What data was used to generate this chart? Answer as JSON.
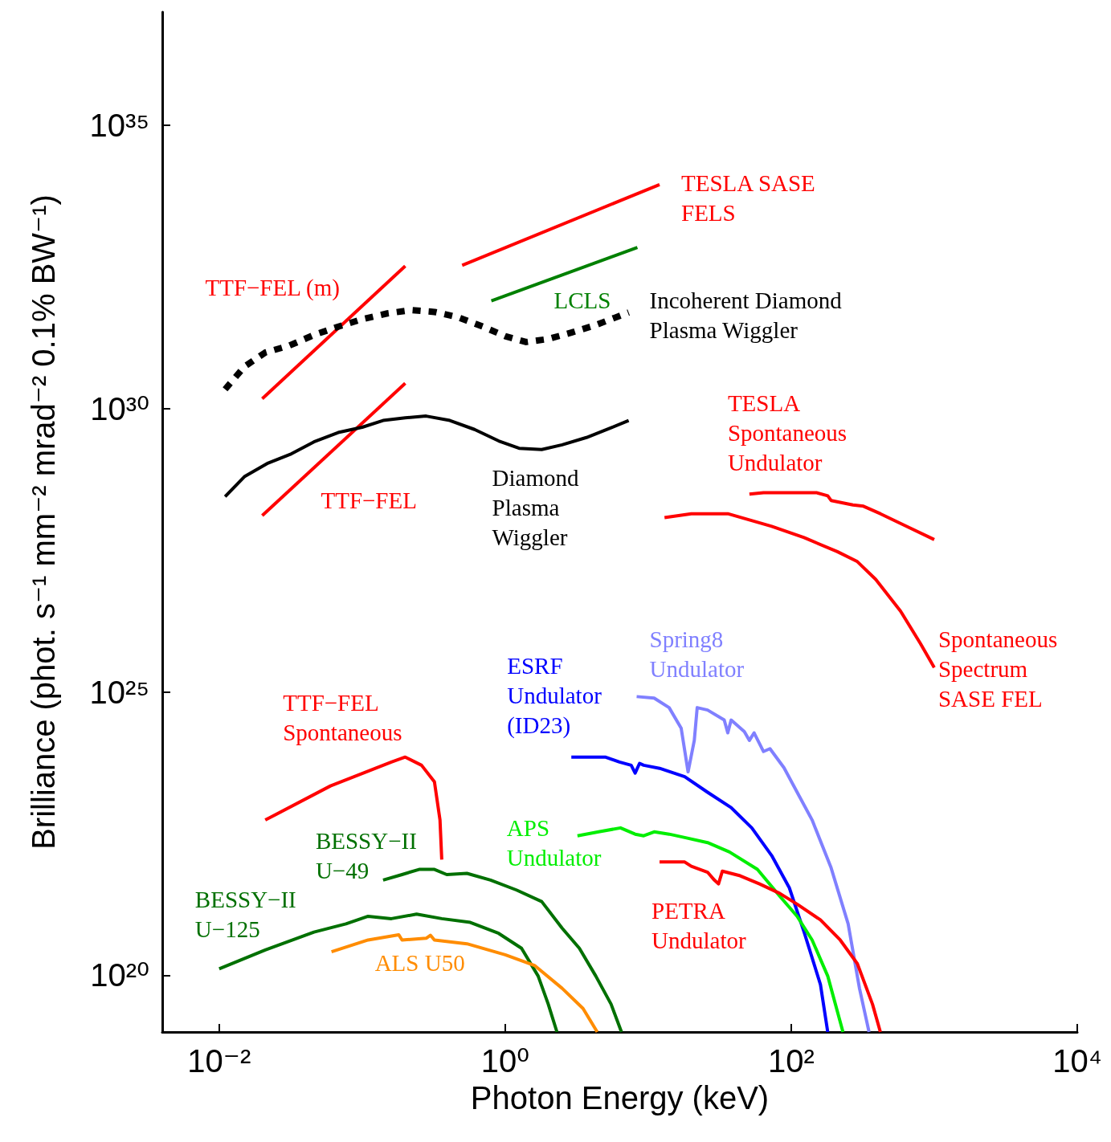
{
  "chart_data": {
    "type": "line",
    "xlabel": "Photon Energy (keV)",
    "ylabel": "Brilliance (phot. s⁻¹ mm⁻² mrad⁻² 0.1% BW⁻¹)",
    "log": "xy",
    "marker": "none",
    "grid": false,
    "xlim": [
      0.004,
      10000
    ],
    "ylim": [
      1e+19,
      1e+37
    ],
    "xticks": [
      {
        "value": 0.01,
        "label": "10⁻²"
      },
      {
        "value": 1,
        "label": "10⁰"
      },
      {
        "value": 100,
        "label": "10²"
      },
      {
        "value": 10000,
        "label": "10⁴"
      }
    ],
    "yticks": [
      {
        "value": 1e+20,
        "label": "10²⁰"
      },
      {
        "value": 1e+25,
        "label": "10²⁵"
      },
      {
        "value": 1e+30,
        "label": "10³⁰"
      },
      {
        "value": 1e+35,
        "label": "10³⁵"
      }
    ],
    "series": [
      {
        "name": "TESLA SASE\nFELS",
        "color": "#ff0000",
        "x": [
          0.5,
          12
        ],
        "values": [
          3.4e+32,
          9e+33
        ]
      },
      {
        "name": "LCLS",
        "color": "#008000",
        "x": [
          0.8,
          8.4
        ],
        "values": [
          8e+31,
          7e+32
        ]
      },
      {
        "name": "TTF−FEL (m)",
        "color": "#ff0000",
        "x": [
          0.02,
          0.2
        ],
        "values": [
          1.5e+30,
          3.3e+32
        ]
      },
      {
        "name": "TTF−FEL",
        "color": "#ff0000",
        "x": [
          0.02,
          0.2
        ],
        "values": [
          1.3e+28,
          2.8e+30
        ]
      },
      {
        "name": "Incoherent Diamond\nPlasma Wiggler",
        "color": "#000000",
        "line_style": "dotted",
        "x": [
          0.011,
          0.015,
          0.021,
          0.031,
          0.046,
          0.068,
          0.1,
          0.15,
          0.22,
          0.32,
          0.47,
          0.7,
          1.0,
          1.4,
          2.0,
          2.9,
          4.3,
          5.5,
          7.3
        ],
        "values": [
          2.2e+30,
          5.5e+30,
          9.8e+30,
          1.3e+31,
          2e+31,
          2.8e+31,
          3.8e+31,
          4.8e+31,
          5.5e+31,
          5.1e+31,
          4.1e+31,
          2.8e+31,
          1.9e+31,
          1.5e+31,
          1.7e+31,
          2.2e+31,
          3e+31,
          3.8e+31,
          5e+31
        ]
      },
      {
        "name": "Diamond\nPlasma\nWiggler",
        "color": "#000000",
        "x": [
          0.011,
          0.015,
          0.022,
          0.032,
          0.046,
          0.068,
          0.1,
          0.14,
          0.2,
          0.28,
          0.41,
          0.61,
          0.9,
          1.25,
          1.8,
          2.5,
          3.7,
          5.5,
          7.3
        ],
        "values": [
          2.8e+28,
          6.3e+28,
          1.1e+29,
          1.6e+29,
          2.6e+29,
          3.8e+29,
          4.7e+29,
          6.2e+29,
          6.9e+29,
          7.4e+29,
          6.2e+29,
          4.3e+29,
          2.7e+29,
          2e+29,
          1.9e+29,
          2.3e+29,
          3.1e+29,
          4.6e+29,
          6.2e+29
        ]
      },
      {
        "name": "TESLA\nSpontaneous\nUndulator",
        "color": "#ff0000",
        "x": [
          51,
          64,
          150,
          180,
          190,
          270,
          320,
          420,
          660,
          1000
        ],
        "values": [
          3.1e+28,
          3.3e+28,
          3.3e+28,
          2.9e+28,
          2.4e+28,
          2e+28,
          1.9e+28,
          1.4e+28,
          8.1e+27,
          4.9e+27
        ]
      },
      {
        "name": "Spontaneous\nSpectrum\nSASE FEL",
        "color": "#ff0000",
        "x": [
          13,
          20,
          36,
          73,
          123,
          210,
          290,
          390,
          580,
          800,
          1000
        ],
        "values": [
          1.2e+28,
          1.4e+28,
          1.4e+28,
          8.4e+27,
          5.3e+27,
          3e+27,
          2e+27,
          9.7e+26,
          2.7e+26,
          7.2e+25,
          2.7e+25
        ]
      },
      {
        "name": "Spring8\nUndulator",
        "color": "#8080ff",
        "x": [
          8.3,
          11,
          14,
          17,
          19,
          21,
          22,
          26,
          34,
          36,
          38,
          47,
          51,
          55,
          64,
          71,
          89,
          110,
          140,
          190,
          250,
          300,
          350
        ],
        "values": [
          8.3e+24,
          7.8e+24,
          5.3e+24,
          2.3e+24,
          3.9e+23,
          1.4e+24,
          5.3e+24,
          4.8e+24,
          3.2e+24,
          1.9e+24,
          3.2e+24,
          2e+24,
          1.4e+24,
          1.9e+24,
          8.9e+23,
          1e+24,
          4.6e+23,
          1.7e+23,
          5.5e+22,
          7.9e+21,
          8.1e+20,
          5.9e+19,
          1e+19
        ]
      },
      {
        "name": "ESRF\nUndulator\n(ID23)",
        "color": "#0000ff",
        "x": [
          2.9,
          5,
          6.3,
          7.6,
          8.1,
          8.7,
          9.3,
          12,
          18,
          26,
          38,
          53,
          73,
          97,
          123,
          160,
          180
        ],
        "values": [
          7.1e+23,
          7.1e+23,
          5.8e+23,
          5.1e+23,
          3.7e+23,
          5.5e+23,
          5.1e+23,
          4.5e+23,
          3.2e+23,
          1.7e+23,
          9.1e+22,
          4e+22,
          1.3e+22,
          3.5e+21,
          5.8e+20,
          6.9e+19,
          1e+19
        ]
      },
      {
        "name": "APS\nUndulator",
        "color": "#00ee00",
        "x": [
          3.2,
          4.5,
          6.4,
          8.1,
          9.3,
          11,
          14,
          18,
          26,
          37,
          58,
          83,
          110,
          140,
          180,
          230
        ],
        "values": [
          2.9e+22,
          3.4e+22,
          4e+22,
          3.1e+22,
          2.9e+22,
          3.4e+22,
          3.1e+22,
          2.7e+22,
          2.2e+22,
          1.5e+22,
          7.4e+21,
          2.5e+21,
          1.1e+21,
          4.2e+20,
          9.7e+19,
          1e+19
        ]
      },
      {
        "name": "PETRA\nUndulator",
        "color": "#ff0000",
        "x": [
          12,
          18,
          20,
          26,
          29,
          31,
          33,
          44,
          60,
          83,
          110,
          160,
          220,
          290,
          370,
          420
        ],
        "values": [
          1e+22,
          1e+22,
          8.4e+21,
          6.6e+21,
          4.8e+21,
          4.1e+21,
          6.9e+21,
          5.7e+21,
          4.1e+21,
          2.8e+21,
          1.8e+21,
          9.5e+20,
          4.2e+20,
          1.6e+20,
          3.1e+19,
          1e+19
        ]
      },
      {
        "name": "TTF−FEL\nSpontaneous",
        "color": "#ff0000",
        "x": [
          0.021,
          0.06,
          0.16,
          0.2,
          0.26,
          0.32,
          0.35,
          0.36
        ],
        "values": [
          5.5e+22,
          2.2e+23,
          5.8e+23,
          7.1e+23,
          5.1e+23,
          2.6e+23,
          5.5e+22,
          1.1e+22
        ]
      },
      {
        "name": "BESSY−II\nU−49",
        "color": "#007000",
        "x": [
          0.14,
          0.19,
          0.25,
          0.32,
          0.39,
          0.54,
          0.79,
          1.2,
          1.8,
          2.5,
          3.3,
          4.3,
          5.5,
          6.5
        ],
        "values": [
          4.8e+21,
          6e+21,
          7.4e+21,
          7.4e+21,
          6e+21,
          6.3e+21,
          4.8e+21,
          3.2e+21,
          2e+21,
          6.8e+20,
          3e+20,
          9.7e+19,
          3.1e+19,
          1e+19
        ]
      },
      {
        "name": "BESSY−II\nU−125",
        "color": "#007000",
        "x": [
          0.01,
          0.021,
          0.046,
          0.077,
          0.11,
          0.16,
          0.24,
          0.36,
          0.57,
          0.9,
          1.3,
          1.7,
          2,
          2.3
        ],
        "values": [
          1.3e+20,
          2.8e+20,
          5.8e+20,
          8.1e+20,
          1.1e+21,
          1e+21,
          1.2e+21,
          1e+21,
          8.6e+20,
          5.5e+20,
          3e+20,
          9.7e+19,
          3.1e+19,
          1e+19
        ]
      },
      {
        "name": "ALS U50",
        "color": "#ff8c00",
        "x": [
          0.061,
          0.11,
          0.18,
          0.19,
          0.28,
          0.3,
          0.32,
          0.54,
          1.0,
          1.6,
          2.5,
          3.5,
          4.4
        ],
        "values": [
          2.6e+20,
          4.2e+20,
          5.2e+20,
          4.2e+20,
          4.5e+20,
          5.1e+20,
          4.2e+20,
          3.6e+20,
          2.3e+20,
          1.5e+20,
          5.9e+19,
          2.6e+19,
          1e+19
        ]
      }
    ]
  }
}
